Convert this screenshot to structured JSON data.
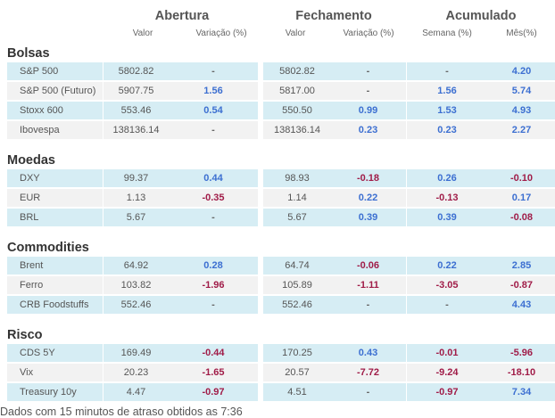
{
  "headers": {
    "abertura": "Abertura",
    "fechamento": "Fechamento",
    "acumulado": "Acumulado",
    "valor1": "Valor",
    "variacao1": "Variação (%)",
    "valor2": "Valor",
    "variacao2": "Variação (%)",
    "semana": "Semana (%)",
    "mes": "Mês(%)"
  },
  "sections": [
    {
      "title": "Bolsas",
      "rows": [
        {
          "name": "S&P 500",
          "ab_valor": "5802.82",
          "ab_var": "-",
          "fe_valor": "5802.82",
          "fe_var": "-",
          "semana": "-",
          "mes": "4.20"
        },
        {
          "name": "S&P 500 (Futuro)",
          "ab_valor": "5907.75",
          "ab_var": "1.56",
          "fe_valor": "5817.00",
          "fe_var": "-",
          "semana": "1.56",
          "mes": "5.74"
        },
        {
          "name": "Stoxx 600",
          "ab_valor": "553.46",
          "ab_var": "0.54",
          "fe_valor": "550.50",
          "fe_var": "0.99",
          "semana": "1.53",
          "mes": "4.93"
        },
        {
          "name": "Ibovespa",
          "ab_valor": "138136.14",
          "ab_var": "-",
          "fe_valor": "138136.14",
          "fe_var": "0.23",
          "semana": "0.23",
          "mes": "2.27"
        }
      ]
    },
    {
      "title": "Moedas",
      "rows": [
        {
          "name": "DXY",
          "ab_valor": "99.37",
          "ab_var": "0.44",
          "fe_valor": "98.93",
          "fe_var": "-0.18",
          "semana": "0.26",
          "mes": "-0.10"
        },
        {
          "name": "EUR",
          "ab_valor": "1.13",
          "ab_var": "-0.35",
          "fe_valor": "1.14",
          "fe_var": "0.22",
          "semana": "-0.13",
          "mes": "0.17"
        },
        {
          "name": "BRL",
          "ab_valor": "5.67",
          "ab_var": "-",
          "fe_valor": "5.67",
          "fe_var": "0.39",
          "semana": "0.39",
          "mes": "-0.08"
        }
      ]
    },
    {
      "title": "Commodities",
      "rows": [
        {
          "name": "Brent",
          "ab_valor": "64.92",
          "ab_var": "0.28",
          "fe_valor": "64.74",
          "fe_var": "-0.06",
          "semana": "0.22",
          "mes": "2.85"
        },
        {
          "name": "Ferro",
          "ab_valor": "103.82",
          "ab_var": "-1.96",
          "fe_valor": "105.89",
          "fe_var": "-1.11",
          "semana": "-3.05",
          "mes": "-0.87"
        },
        {
          "name": "CRB Foodstuffs",
          "ab_valor": "552.46",
          "ab_var": "-",
          "fe_valor": "552.46",
          "fe_var": "-",
          "semana": "-",
          "mes": "4.43"
        }
      ]
    },
    {
      "title": "Risco",
      "rows": [
        {
          "name": "CDS 5Y",
          "ab_valor": "169.49",
          "ab_var": "-0.44",
          "fe_valor": "170.25",
          "fe_var": "0.43",
          "semana": "-0.01",
          "mes": "-5.96"
        },
        {
          "name": "Vix",
          "ab_valor": "20.23",
          "ab_var": "-1.65",
          "fe_valor": "20.57",
          "fe_var": "-7.72",
          "semana": "-9.24",
          "mes": "-18.10"
        },
        {
          "name": "Treasury 10y",
          "ab_valor": "4.47",
          "ab_var": "-0.97",
          "fe_valor": "4.51",
          "fe_var": "-",
          "semana": "-0.97",
          "mes": "7.34"
        }
      ]
    }
  ],
  "footer": "Dados com 15 minutos de atraso obtidos as 7:36",
  "colors": {
    "positive": "#3c6fd1",
    "negative": "#a01c48",
    "row_even": "#d6edf4",
    "row_odd": "#f2f2f2"
  }
}
